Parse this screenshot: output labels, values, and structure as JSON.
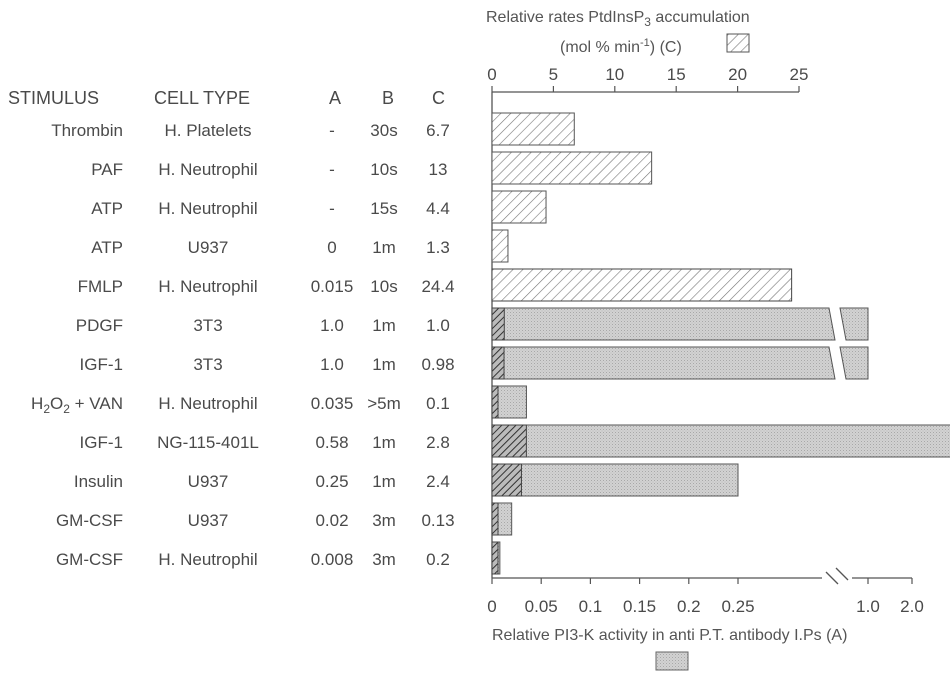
{
  "headers": {
    "stimulus": "STIMULUS",
    "cell_type": "CELL TYPE",
    "a": "A",
    "b": "B",
    "c": "C"
  },
  "rows": [
    {
      "stimulus": "Thrombin",
      "cell_type": "H. Platelets",
      "a": "-",
      "b": "30s",
      "c": "6.7"
    },
    {
      "stimulus": "PAF",
      "cell_type": "H. Neutrophil",
      "a": "-",
      "b": "10s",
      "c": "13"
    },
    {
      "stimulus": "ATP",
      "cell_type": "H. Neutrophil",
      "a": "-",
      "b": "15s",
      "c": "4.4"
    },
    {
      "stimulus": "ATP",
      "cell_type": "U937",
      "a": "0",
      "b": "1m",
      "c": "1.3"
    },
    {
      "stimulus": "FMLP",
      "cell_type": "H. Neutrophil",
      "a": "0.015",
      "b": "10s",
      "c": "24.4"
    },
    {
      "stimulus": "PDGF",
      "cell_type": "3T3",
      "a": "1.0",
      "b": "1m",
      "c": "1.0"
    },
    {
      "stimulus": "IGF-1",
      "cell_type": "3T3",
      "a": "1.0",
      "b": "1m",
      "c": "0.98"
    },
    {
      "stimulus": "H2O2 + VAN",
      "cell_type": "H. Neutrophil",
      "a": "0.035",
      "b": ">5m",
      "c": "0.1"
    },
    {
      "stimulus": "IGF-1",
      "cell_type": "NG-115-401L",
      "a": "0.58",
      "b": "1m",
      "c": "2.8"
    },
    {
      "stimulus": "Insulin",
      "cell_type": "U937",
      "a": "0.25",
      "b": "1m",
      "c": "2.4"
    },
    {
      "stimulus": "GM-CSF",
      "cell_type": "U937",
      "a": "0.02",
      "b": "3m",
      "c": "0.13"
    },
    {
      "stimulus": "GM-CSF",
      "cell_type": "H. Neutrophil",
      "a": "0.008",
      "b": "3m",
      "c": "0.2"
    }
  ],
  "chart_data": {
    "type": "bar",
    "orientation": "horizontal",
    "categories": [
      "Thrombin",
      "PAF",
      "ATP",
      "ATP",
      "FMLP",
      "PDGF",
      "IGF-1",
      "H2O2 + VAN",
      "IGF-1",
      "Insulin",
      "GM-CSF",
      "GM-CSF"
    ],
    "series": [
      {
        "name": "C",
        "pattern": "hatched",
        "axis": "top",
        "values": [
          6.7,
          13,
          4.4,
          1.3,
          24.4,
          1.0,
          0.98,
          0.1,
          2.8,
          2.4,
          0.13,
          0.2
        ]
      },
      {
        "name": "A",
        "pattern": "dotted-grey",
        "axis": "bottom",
        "values": [
          null,
          null,
          null,
          0,
          0.015,
          1.0,
          1.0,
          0.035,
          0.58,
          0.25,
          0.02,
          0.008
        ]
      }
    ],
    "top_axis": {
      "title_line1": "Relative rates PtdInsP",
      "title_sub": "3",
      "title_line1_end": " accumulation",
      "title_line2": "(mol % min",
      "title_line2_sup": "-1",
      "title_line2_end": ") (C)",
      "ticks": [
        0,
        5,
        10,
        15,
        20,
        25
      ],
      "range": [
        0,
        25
      ]
    },
    "bottom_axis": {
      "title": "Relative PI3-K activity in anti P.T. antibody I.Ps (A)",
      "ticks": [
        "0",
        "0.05",
        "0.1",
        "0.15",
        "0.2",
        "0.25",
        "1.0",
        "2.0"
      ],
      "range": [
        0,
        0.27
      ],
      "break_after": 0.27,
      "break_range": [
        1.0,
        2.0
      ]
    }
  }
}
